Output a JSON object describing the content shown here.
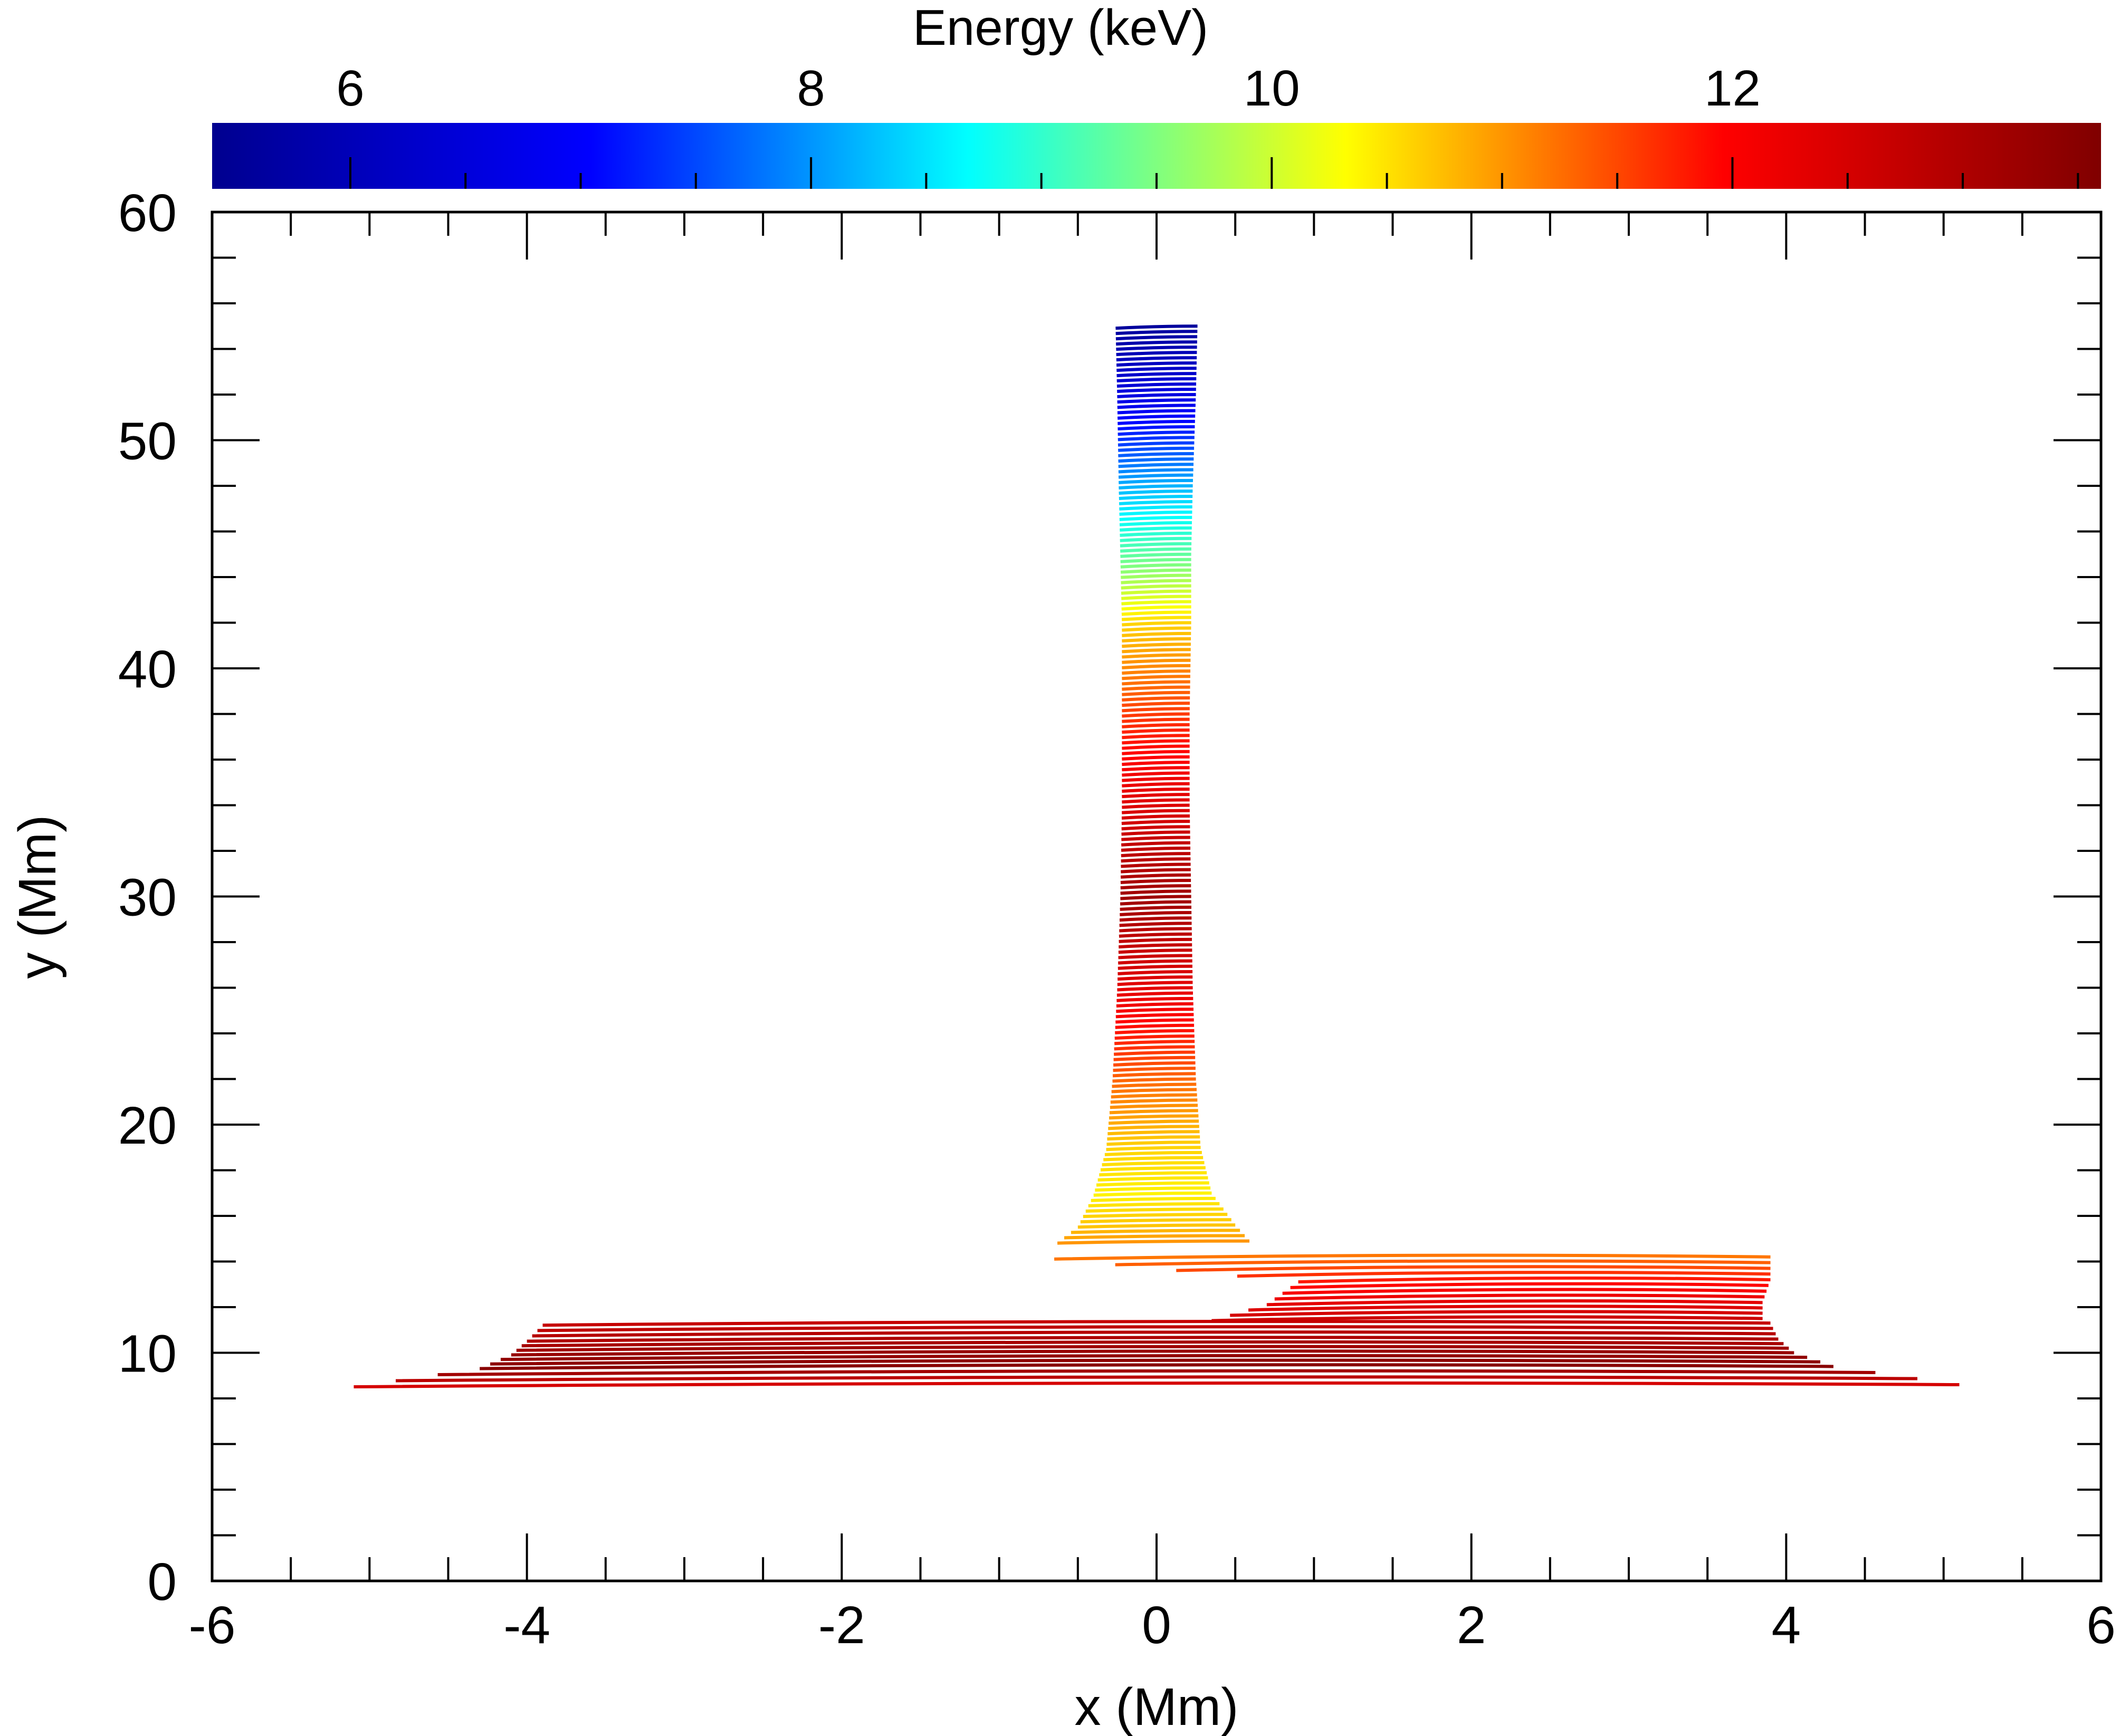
{
  "chart_data": {
    "type": "line",
    "xlabel": "x (Mm)",
    "ylabel": "y (Mm)",
    "xlim": [
      -6,
      6
    ],
    "ylim": [
      0,
      60
    ],
    "x_ticks": [
      "-6",
      "-4",
      "-2",
      "0",
      "2",
      "4",
      "6"
    ],
    "y_ticks": [
      "0",
      "10",
      "20",
      "30",
      "40",
      "50",
      "60"
    ],
    "grid": false,
    "colorbar": {
      "title": "Energy (keV)",
      "range": [
        5.4,
        13.6
      ],
      "ticks": [
        "6",
        "8",
        "10",
        "12"
      ],
      "colormap": "jet",
      "colormap_stops": [
        "#00008f",
        "#0000ff",
        "#00ffff",
        "#ffff00",
        "#ff0000",
        "#800000"
      ],
      "placement": "top"
    },
    "series": [
      {
        "description_key": "vertical-column",
        "traces": [
          {
            "x": [
              -0.26,
              0.26
            ],
            "y": 55,
            "energy": 5.6
          },
          {
            "x": [
              -0.25,
              0.25
            ],
            "y": 52,
            "energy": 6.6
          },
          {
            "x": [
              -0.24,
              0.23
            ],
            "y": 48,
            "energy": 8.2
          },
          {
            "x": [
              -0.23,
              0.22
            ],
            "y": 45,
            "energy": 9.3
          },
          {
            "x": [
              -0.22,
              0.22
            ],
            "y": 42,
            "energy": 10.6
          },
          {
            "x": [
              -0.22,
              0.21
            ],
            "y": 38,
            "energy": 11.6
          },
          {
            "x": [
              -0.22,
              0.21
            ],
            "y": 34,
            "energy": 12.4
          },
          {
            "x": [
              -0.23,
              0.22
            ],
            "y": 30,
            "energy": 13.2
          },
          {
            "x": [
              -0.25,
              0.23
            ],
            "y": 26,
            "energy": 12.3
          },
          {
            "x": [
              -0.28,
              0.25
            ],
            "y": 22,
            "energy": 11.3
          },
          {
            "x": [
              -0.32,
              0.28
            ],
            "y": 19,
            "energy": 10.6
          },
          {
            "x": [
              -0.4,
              0.35
            ],
            "y": 17,
            "energy": 10.4
          },
          {
            "x": [
              -0.5,
              0.5
            ],
            "y": 15.6,
            "energy": 10.7
          },
          {
            "x": [
              -0.63,
              0.59
            ],
            "y": 14.9,
            "energy": 11.0
          }
        ]
      },
      {
        "description_key": "right-ledge",
        "traces": [
          {
            "x": [
              -0.65,
              3.9
            ],
            "y": 14.2,
            "energy": 11.2
          },
          {
            "x": [
              0.9,
              3.9
            ],
            "y": 13.2,
            "energy": 11.8
          },
          {
            "x": [
              0.7,
              3.85
            ],
            "y": 12.2,
            "energy": 12.3
          },
          {
            "x": [
              0.35,
              3.85
            ],
            "y": 11.5,
            "energy": 12.6
          }
        ]
      },
      {
        "description_key": "horizontal-sheet",
        "traces": [
          {
            "x": [
              -3.9,
              3.9
            ],
            "y": 11.3,
            "energy": 12.7
          },
          {
            "x": [
              -4.0,
              3.95
            ],
            "y": 10.6,
            "energy": 13.0
          },
          {
            "x": [
              -4.1,
              4.05
            ],
            "y": 10.0,
            "energy": 13.3
          },
          {
            "x": [
              -4.3,
              4.3
            ],
            "y": 9.4,
            "energy": 13.5
          },
          {
            "x": [
              -5.1,
              5.1
            ],
            "y": 8.6,
            "energy": 12.5
          }
        ]
      }
    ]
  }
}
